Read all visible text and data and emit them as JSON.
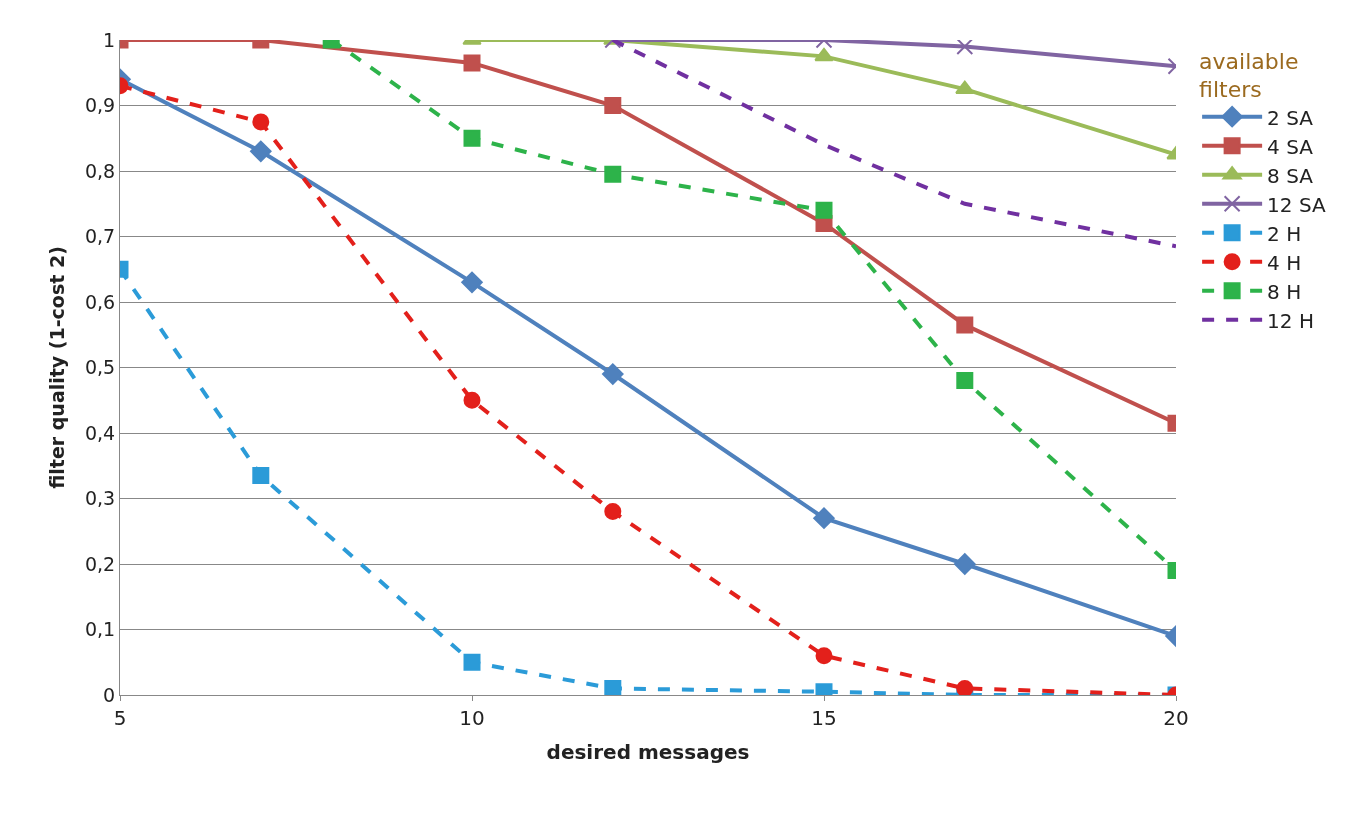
{
  "chart_data": {
    "type": "line",
    "xlabel": "desired messages",
    "ylabel": "filter quality (1-cost 2)",
    "legend_title": "available filters",
    "legend": "right",
    "grid": "y",
    "xlim": [
      5,
      20
    ],
    "xticks": [
      5,
      10,
      15,
      20
    ],
    "ylim": [
      0,
      1
    ],
    "yticks": [
      0,
      {
        "value": 0.1,
        "label": "0,1"
      },
      {
        "value": 0.2,
        "label": "0,2"
      },
      {
        "value": 0.3,
        "label": "0,3"
      },
      {
        "value": 0.4,
        "label": "0,4"
      },
      {
        "value": 0.5,
        "label": "0,5"
      },
      {
        "value": 0.6,
        "label": "0,6"
      },
      {
        "value": 0.7,
        "label": "0,7"
      },
      {
        "value": 0.8,
        "label": "0,8"
      },
      {
        "value": 0.9,
        "label": "0,9"
      },
      1
    ],
    "series": [
      {
        "name": "2 SA",
        "color": "#4f81bd",
        "marker": "diamond",
        "line_style": "solid",
        "x": [
          5,
          7,
          10,
          12,
          15,
          17,
          20
        ],
        "values": [
          0.94,
          0.83,
          0.63,
          0.49,
          0.27,
          0.2,
          0.09
        ]
      },
      {
        "name": "4 SA",
        "color": "#c0504d",
        "marker": "square",
        "line_style": "solid",
        "x": [
          5,
          7,
          10,
          12,
          15,
          17,
          20
        ],
        "values": [
          1.0,
          1.0,
          0.965,
          0.9,
          0.72,
          0.565,
          0.415
        ]
      },
      {
        "name": "8 SA",
        "color": "#9bbb59",
        "marker": "triangle",
        "line_style": "solid",
        "x": [
          10,
          12,
          15,
          17,
          20
        ],
        "values": [
          1.0,
          1.0,
          0.975,
          0.925,
          0.825
        ]
      },
      {
        "name": "12 SA",
        "color": "#8064a2",
        "marker": "cross",
        "line_style": "solid",
        "x": [
          12,
          15,
          17,
          20
        ],
        "values": [
          1.0,
          1.0,
          0.99,
          0.96
        ]
      },
      {
        "name": "2 H",
        "color": "#2b9bd8",
        "marker": "square",
        "line_style": "dashed",
        "x": [
          5,
          7,
          10,
          12,
          15,
          17,
          20
        ],
        "values": [
          0.65,
          0.335,
          0.05,
          0.01,
          0.005,
          0.0,
          0.0
        ]
      },
      {
        "name": "4 H",
        "color": "#e3201b",
        "marker": "circle",
        "line_style": "dashed",
        "x": [
          5,
          7,
          10,
          12,
          15,
          17,
          20
        ],
        "values": [
          0.93,
          0.875,
          0.45,
          0.28,
          0.06,
          0.01,
          0.0
        ]
      },
      {
        "name": "8 H",
        "color": "#2db34a",
        "marker": "square",
        "line_style": "dashed",
        "x": [
          8,
          10,
          12,
          15,
          17,
          20
        ],
        "values": [
          1.0,
          0.85,
          0.795,
          0.74,
          0.48,
          0.19
        ]
      },
      {
        "name": "12 H",
        "color": "#7030a0",
        "marker": "none",
        "line_style": "dashed",
        "x": [
          12,
          15,
          17,
          20
        ],
        "values": [
          1.0,
          0.84,
          0.75,
          0.685
        ]
      }
    ]
  }
}
